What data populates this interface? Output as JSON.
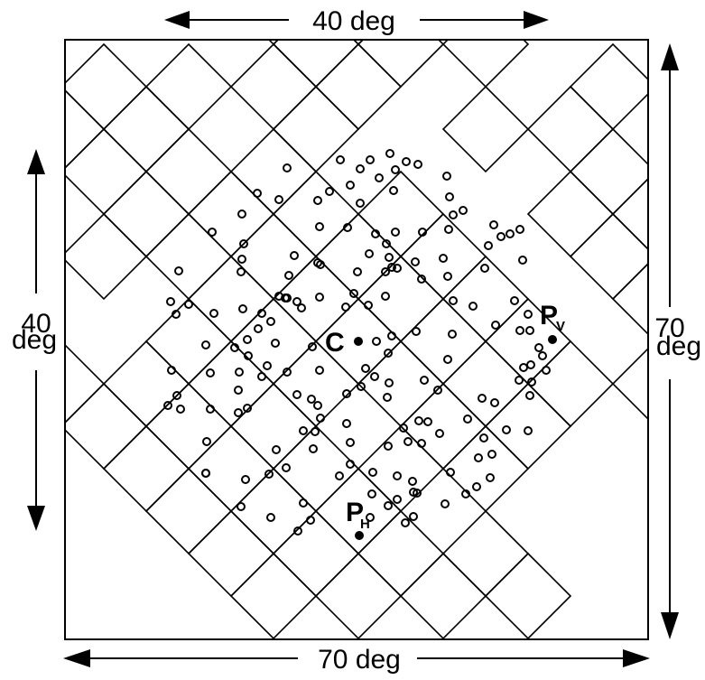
{
  "figure": {
    "top_span": "40 deg",
    "bottom_span": "70 deg",
    "left_span_value": "40",
    "left_span_unit": "deg",
    "right_span_value": "70",
    "right_span_unit": "deg",
    "center_label": "C",
    "point_v_letter": "P",
    "point_v_sub": "V",
    "point_h_letter": "P",
    "point_h_sub": "H"
  },
  "colors": {
    "ink": "#000000",
    "background": "#ffffff"
  }
}
